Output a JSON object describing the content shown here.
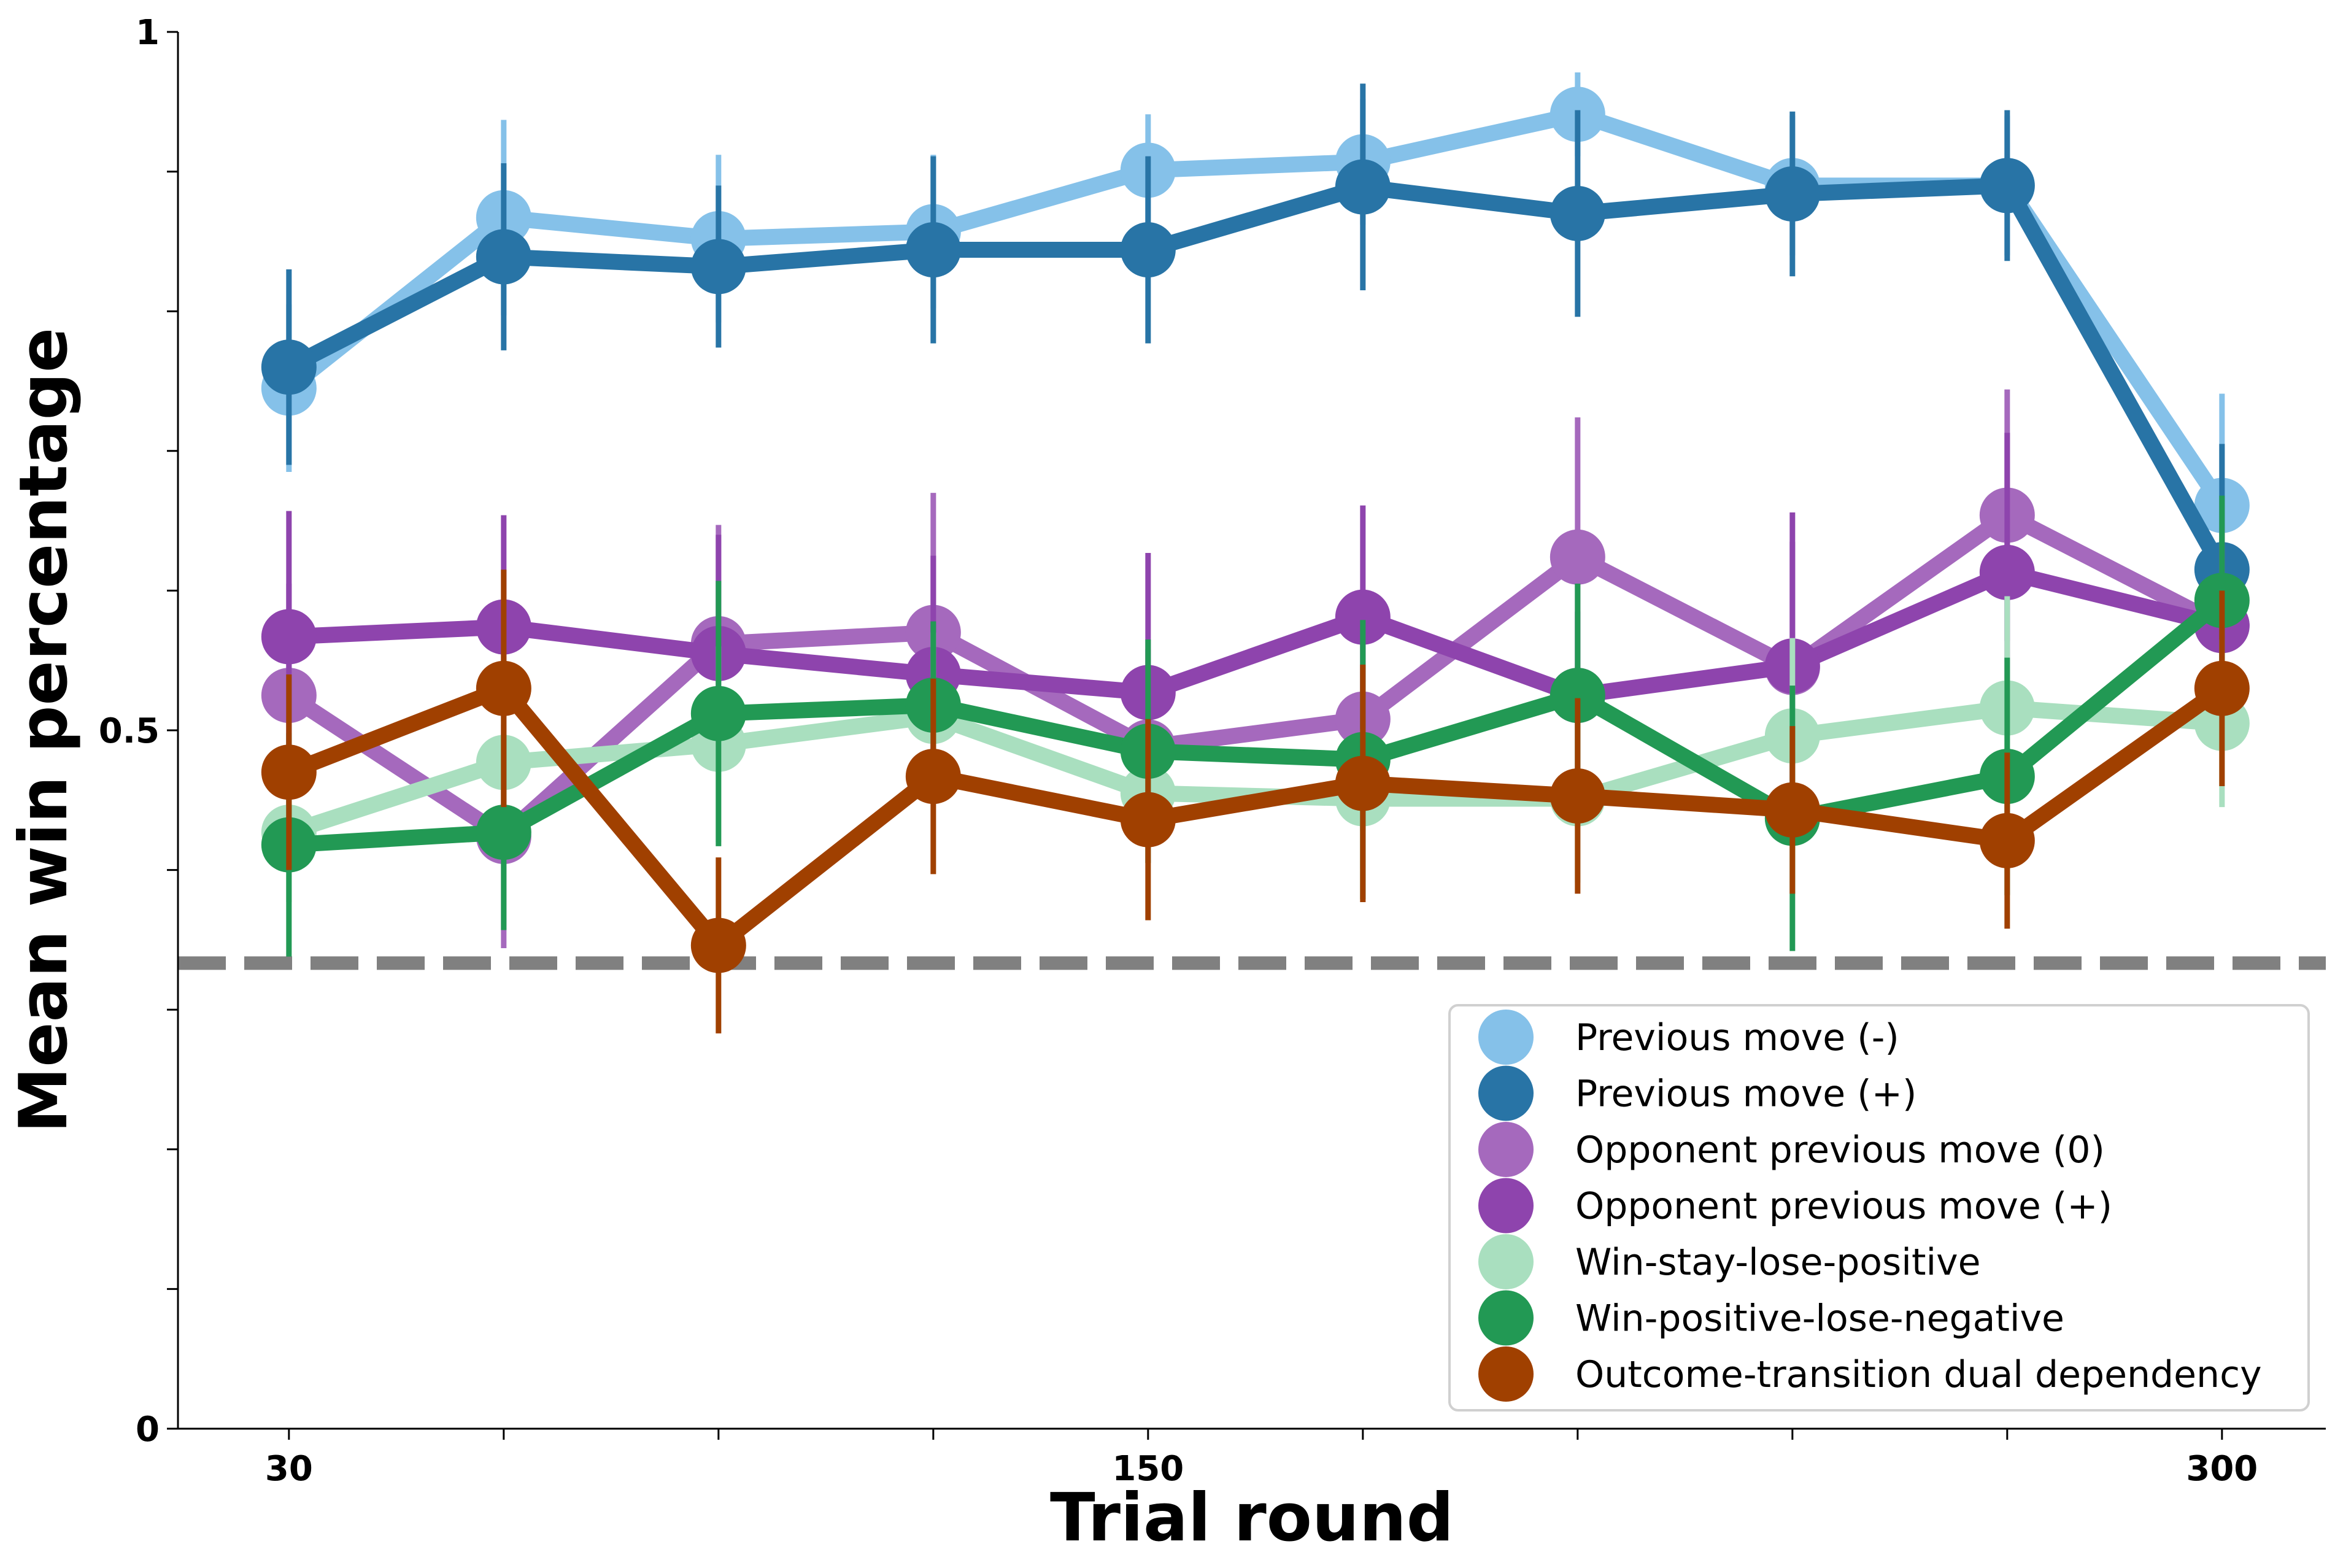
{
  "chart_data": {
    "type": "line",
    "title": "",
    "xlabel": "Trial round",
    "ylabel": "Mean win percentage",
    "x": [
      30,
      60,
      90,
      120,
      150,
      180,
      210,
      240,
      270,
      300
    ],
    "x_tick_values": [
      30,
      60,
      90,
      120,
      150,
      180,
      210,
      240,
      270,
      300
    ],
    "x_tick_labels": [
      "30",
      "",
      "",
      "",
      "150",
      "",
      "",
      "",
      "",
      "300"
    ],
    "xlim": [
      14.5,
      314.5
    ],
    "y_tick_values": [
      0,
      0.1,
      0.2,
      0.3,
      0.4,
      0.5,
      0.6,
      0.7,
      0.8,
      0.9,
      1.0
    ],
    "y_tick_labels": [
      "0",
      "",
      "",
      "",
      "",
      "0.5",
      "",
      "",
      "",
      "",
      "1"
    ],
    "ylim": [
      0,
      1
    ],
    "reference_line": {
      "y": 0.3333,
      "style": "dashed",
      "color": "#808080"
    },
    "legend_position": "lower-right",
    "series": [
      {
        "name": "Previous move (-)",
        "color": "#85c1e9",
        "values": [
          0.745,
          0.867,
          0.852,
          0.857,
          0.901,
          0.907,
          0.941,
          0.89,
          0.89,
          0.661
        ],
        "err": [
          0.06,
          0.07,
          0.06,
          0.055,
          0.04,
          0.045,
          0.03,
          0.05,
          0.05,
          0.08
        ]
      },
      {
        "name": "Previous move (+)",
        "color": "#2874a6",
        "values": [
          0.76,
          0.839,
          0.832,
          0.844,
          0.844,
          0.889,
          0.87,
          0.884,
          0.89,
          0.615
        ],
        "err": [
          0.07,
          0.067,
          0.058,
          0.067,
          0.067,
          0.074,
          0.074,
          0.059,
          0.054,
          0.09
        ]
      },
      {
        "name": "Opponent previous move (0)",
        "color": "#a569bd",
        "values": [
          0.525,
          0.424,
          0.562,
          0.57,
          0.488,
          0.508,
          0.624,
          0.545,
          0.654,
          0.575
        ],
        "err": [
          0.08,
          0.08,
          0.085,
          0.1,
          0.07,
          0.08,
          0.1,
          0.09,
          0.09,
          0.07
        ]
      },
      {
        "name": "Opponent previous move (+)",
        "color": "#8e44ad",
        "values": [
          0.567,
          0.574,
          0.555,
          0.54,
          0.527,
          0.581,
          0.525,
          0.546,
          0.613,
          0.575
        ],
        "err": [
          0.09,
          0.08,
          0.085,
          0.085,
          0.1,
          0.08,
          0.06,
          0.11,
          0.1,
          0.06
        ]
      },
      {
        "name": "Win-stay-lose-positive",
        "color": "#a9dfbf",
        "values": [
          0.427,
          0.477,
          0.49,
          0.51,
          0.455,
          0.451,
          0.451,
          0.496,
          0.516,
          0.505
        ],
        "err": [
          0.05,
          0.05,
          0.07,
          0.06,
          0.05,
          0.05,
          0.06,
          0.07,
          0.08,
          0.06
        ]
      },
      {
        "name": "Win-positive-lose-negative",
        "color": "#229954",
        "values": [
          0.418,
          0.427,
          0.512,
          0.518,
          0.485,
          0.479,
          0.525,
          0.437,
          0.467,
          0.593
        ],
        "err": [
          0.08,
          0.07,
          0.095,
          0.06,
          0.08,
          0.1,
          0.08,
          0.095,
          0.085,
          0.075
        ]
      },
      {
        "name": "Outcome-transition dual dependency",
        "color": "#a04000",
        "values": [
          0.47,
          0.53,
          0.346,
          0.467,
          0.436,
          0.462,
          0.453,
          0.443,
          0.421,
          0.53
        ],
        "err": [
          0.07,
          0.085,
          0.063,
          0.07,
          0.072,
          0.085,
          0.07,
          0.06,
          0.063,
          0.07
        ]
      }
    ]
  }
}
